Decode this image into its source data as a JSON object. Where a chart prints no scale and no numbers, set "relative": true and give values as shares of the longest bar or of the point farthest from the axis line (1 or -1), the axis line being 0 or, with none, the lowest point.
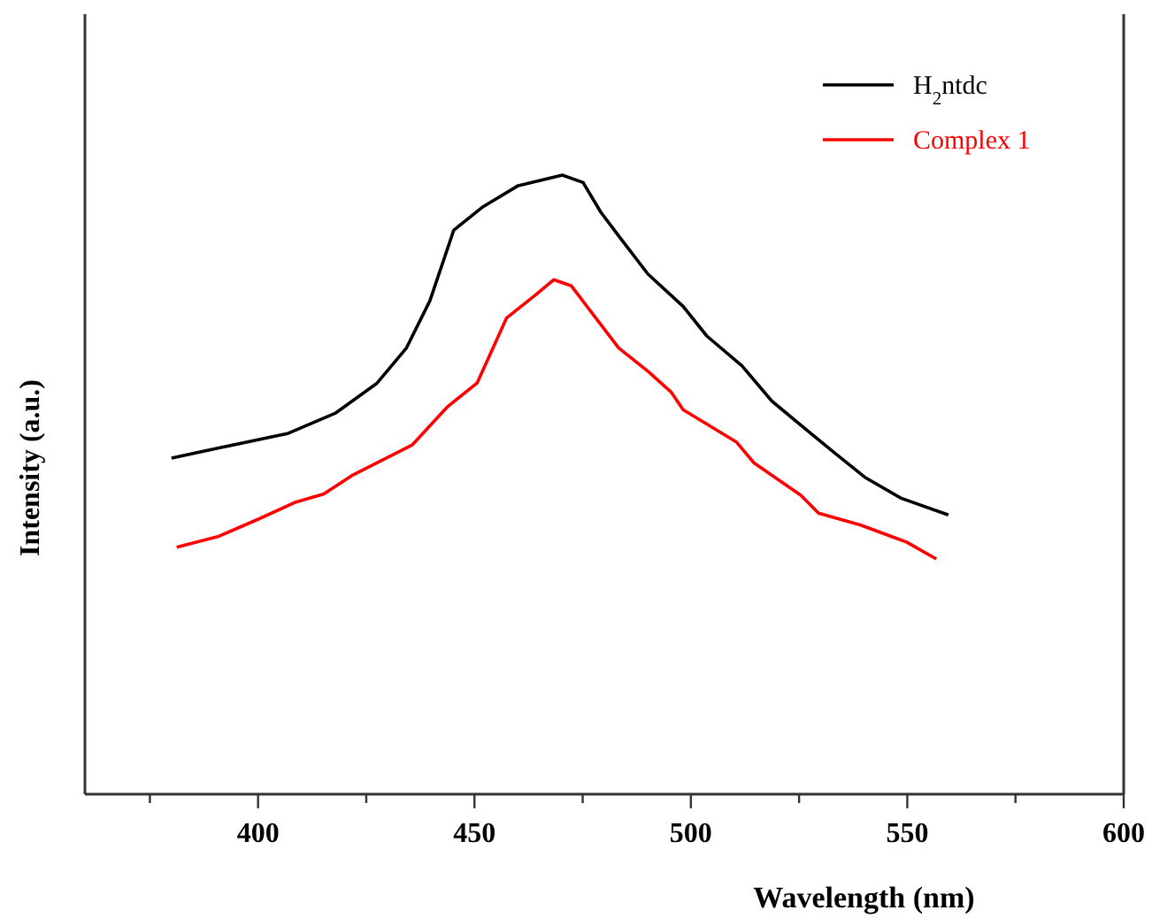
{
  "chart_data": {
    "type": "line",
    "relative": true,
    "xlabel": "Wavelength (nm)",
    "ylabel": "Intensity (a.u.)",
    "xlim": [
      360,
      600
    ],
    "xticks": [
      {
        "value": 375,
        "label": null
      },
      400,
      {
        "value": 425,
        "label": null
      },
      450,
      {
        "value": 475,
        "label": null
      },
      500,
      {
        "value": 525,
        "label": null
      },
      550,
      {
        "value": 575,
        "label": null
      },
      600
    ],
    "legend": "top right",
    "grid": false,
    "marker": "none",
    "line_style": "solid",
    "series": [
      {
        "name": "H$_{2}$ntdc",
        "color": "#000000",
        "x": [
          380,
          390.7,
          407,
          418,
          427.5,
          434.3,
          439.7,
          445.2,
          452,
          460.1,
          470.3,
          475.1,
          479.2,
          483.3,
          490.1,
          498.2,
          503.7,
          511.8,
          518.7,
          526.8,
          533.6,
          540.4,
          548.6,
          559.5
        ],
        "values": [
          0.543,
          0.559,
          0.583,
          0.616,
          0.664,
          0.721,
          0.797,
          0.911,
          0.949,
          0.983,
          1.0,
          0.988,
          0.94,
          0.902,
          0.84,
          0.788,
          0.74,
          0.692,
          0.635,
          0.588,
          0.549,
          0.511,
          0.478,
          0.451
        ]
      },
      {
        "name": "Complex 1",
        "color": "#ff0000",
        "x": [
          381.2,
          390.7,
          400.3,
          408.4,
          415.2,
          422,
          435.6,
          443.8,
          450.6,
          457.4,
          464.2,
          468.3,
          472.4,
          483.3,
          490.1,
          495.5,
          498.2,
          510.5,
          514.6,
          525.4,
          529.5,
          539.1,
          549.9,
          556.7
        ],
        "values": [
          0.399,
          0.416,
          0.445,
          0.471,
          0.485,
          0.516,
          0.564,
          0.626,
          0.664,
          0.769,
          0.807,
          0.831,
          0.821,
          0.721,
          0.683,
          0.649,
          0.621,
          0.569,
          0.535,
          0.483,
          0.454,
          0.435,
          0.407,
          0.38
        ]
      }
    ]
  }
}
